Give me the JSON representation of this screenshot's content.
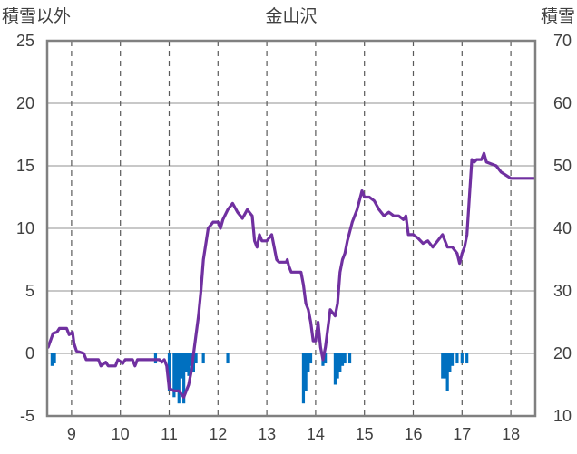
{
  "chart_data": {
    "type": "line",
    "title": "金山沢",
    "ylabel_left": "積雪以外",
    "ylabel_right": "積雪",
    "xlim": [
      8.5,
      18.5
    ],
    "ylim_left": [
      -5,
      25
    ],
    "ylim_right": [
      10,
      70
    ],
    "x_ticks": [
      9,
      10,
      11,
      12,
      13,
      14,
      15,
      16,
      17,
      18
    ],
    "y_ticks_left": [
      -5,
      0,
      5,
      10,
      15,
      20,
      25
    ],
    "y_ticks_right": [
      10,
      20,
      30,
      40,
      50,
      60,
      70
    ],
    "grid": {
      "vertical": "dashed",
      "horizontal": "solid"
    },
    "colors": {
      "line": "#7030a0",
      "bars": "#0070c0",
      "grid": "#a6a6a6",
      "axes": "#808080"
    },
    "series": [
      {
        "type": "line",
        "axis": "left",
        "points": [
          [
            8.52,
            0.5
          ],
          [
            8.62,
            1.6
          ],
          [
            8.7,
            1.7
          ],
          [
            8.75,
            2.0
          ],
          [
            8.9,
            2.0
          ],
          [
            8.95,
            1.5
          ],
          [
            9.02,
            1.7
          ],
          [
            9.05,
            0.8
          ],
          [
            9.1,
            0.2
          ],
          [
            9.25,
            0.0
          ],
          [
            9.3,
            -0.5
          ],
          [
            9.55,
            -0.5
          ],
          [
            9.6,
            -1.0
          ],
          [
            9.7,
            -0.7
          ],
          [
            9.75,
            -1.0
          ],
          [
            9.9,
            -1.0
          ],
          [
            9.95,
            -0.5
          ],
          [
            10.05,
            -0.8
          ],
          [
            10.1,
            -0.5
          ],
          [
            10.25,
            -0.5
          ],
          [
            10.3,
            -1.0
          ],
          [
            10.35,
            -0.5
          ],
          [
            10.65,
            -0.5
          ],
          [
            10.8,
            -0.5
          ],
          [
            10.85,
            -0.7
          ],
          [
            10.9,
            -0.5
          ],
          [
            10.95,
            -1.0
          ],
          [
            11.0,
            -2.8
          ],
          [
            11.1,
            -3.0
          ],
          [
            11.2,
            -3.0
          ],
          [
            11.3,
            -3.5
          ],
          [
            11.4,
            -2.5
          ],
          [
            11.45,
            -1.5
          ],
          [
            11.5,
            0.0
          ],
          [
            11.55,
            1.5
          ],
          [
            11.6,
            3.0
          ],
          [
            11.65,
            5.0
          ],
          [
            11.7,
            7.5
          ],
          [
            11.8,
            10.0
          ],
          [
            11.9,
            10.5
          ],
          [
            12.0,
            10.5
          ],
          [
            12.05,
            10.0
          ],
          [
            12.1,
            10.7
          ],
          [
            12.2,
            11.5
          ],
          [
            12.3,
            12.0
          ],
          [
            12.4,
            11.3
          ],
          [
            12.5,
            10.8
          ],
          [
            12.6,
            11.5
          ],
          [
            12.7,
            11.0
          ],
          [
            12.75,
            9.0
          ],
          [
            12.8,
            8.5
          ],
          [
            12.85,
            9.5
          ],
          [
            12.9,
            9.0
          ],
          [
            13.0,
            9.0
          ],
          [
            13.1,
            9.5
          ],
          [
            13.15,
            8.5
          ],
          [
            13.2,
            7.5
          ],
          [
            13.25,
            7.3
          ],
          [
            13.35,
            7.3
          ],
          [
            13.4,
            7.3
          ],
          [
            13.42,
            7.5
          ],
          [
            13.45,
            7.0
          ],
          [
            13.5,
            6.5
          ],
          [
            13.7,
            6.5
          ],
          [
            13.75,
            5.5
          ],
          [
            13.8,
            4.0
          ],
          [
            13.85,
            3.5
          ],
          [
            13.9,
            2.5
          ],
          [
            13.95,
            1.0
          ],
          [
            14.0,
            1.0
          ],
          [
            14.05,
            2.5
          ],
          [
            14.1,
            0.5
          ],
          [
            14.15,
            -0.5
          ],
          [
            14.2,
            0.5
          ],
          [
            14.3,
            3.5
          ],
          [
            14.4,
            3.0
          ],
          [
            14.45,
            4.0
          ],
          [
            14.5,
            6.5
          ],
          [
            14.55,
            7.5
          ],
          [
            14.6,
            8.0
          ],
          [
            14.65,
            9.0
          ],
          [
            14.75,
            10.5
          ],
          [
            14.85,
            11.5
          ],
          [
            14.95,
            13.0
          ],
          [
            15.0,
            12.5
          ],
          [
            15.1,
            12.5
          ],
          [
            15.2,
            12.2
          ],
          [
            15.3,
            11.5
          ],
          [
            15.4,
            11.0
          ],
          [
            15.5,
            11.3
          ],
          [
            15.6,
            11.0
          ],
          [
            15.7,
            11.0
          ],
          [
            15.8,
            10.7
          ],
          [
            15.85,
            11.0
          ],
          [
            15.9,
            9.5
          ],
          [
            16.0,
            9.5
          ],
          [
            16.1,
            9.2
          ],
          [
            16.2,
            8.8
          ],
          [
            16.3,
            9.0
          ],
          [
            16.4,
            8.5
          ],
          [
            16.5,
            9.0
          ],
          [
            16.6,
            9.5
          ],
          [
            16.7,
            8.5
          ],
          [
            16.8,
            8.5
          ],
          [
            16.9,
            8.0
          ],
          [
            16.95,
            7.2
          ],
          [
            17.0,
            8.0
          ],
          [
            17.05,
            8.5
          ],
          [
            17.1,
            9.5
          ],
          [
            17.2,
            15.5
          ],
          [
            17.25,
            15.3
          ],
          [
            17.3,
            15.5
          ],
          [
            17.4,
            15.5
          ],
          [
            17.45,
            16.0
          ],
          [
            17.5,
            15.3
          ],
          [
            17.7,
            15.0
          ],
          [
            17.8,
            14.5
          ],
          [
            18.0,
            14.0
          ],
          [
            18.48,
            14.0
          ]
        ],
        "comment_removed": true
      },
      {
        "type": "bar",
        "axis": "left",
        "points": [
          [
            8.6,
            -1.0
          ],
          [
            8.65,
            -0.8
          ],
          [
            10.72,
            -0.8
          ],
          [
            11.0,
            -3.0
          ],
          [
            11.1,
            -3.5
          ],
          [
            11.15,
            -3.0
          ],
          [
            11.2,
            -4.0
          ],
          [
            11.25,
            -2.0
          ],
          [
            11.3,
            -4.0
          ],
          [
            11.35,
            -1.5
          ],
          [
            11.4,
            -1.8
          ],
          [
            11.45,
            -1.0
          ],
          [
            11.5,
            -1.5
          ],
          [
            11.55,
            -0.8
          ],
          [
            11.7,
            -0.8
          ],
          [
            12.2,
            -0.8
          ],
          [
            13.75,
            -4.0
          ],
          [
            13.8,
            -3.0
          ],
          [
            13.85,
            -1.5
          ],
          [
            13.9,
            -0.8
          ],
          [
            14.15,
            -1.0
          ],
          [
            14.2,
            -0.8
          ],
          [
            14.4,
            -2.5
          ],
          [
            14.45,
            -2.0
          ],
          [
            14.5,
            -1.5
          ],
          [
            14.55,
            -1.0
          ],
          [
            14.6,
            -0.8
          ],
          [
            14.7,
            -0.8
          ],
          [
            16.6,
            -2.0
          ],
          [
            16.65,
            -2.0
          ],
          [
            16.7,
            -3.0
          ],
          [
            16.75,
            -1.5
          ],
          [
            16.8,
            -1.0
          ],
          [
            16.9,
            -0.8
          ],
          [
            17.0,
            -0.8
          ],
          [
            17.1,
            -0.8
          ]
        ]
      }
    ]
  }
}
